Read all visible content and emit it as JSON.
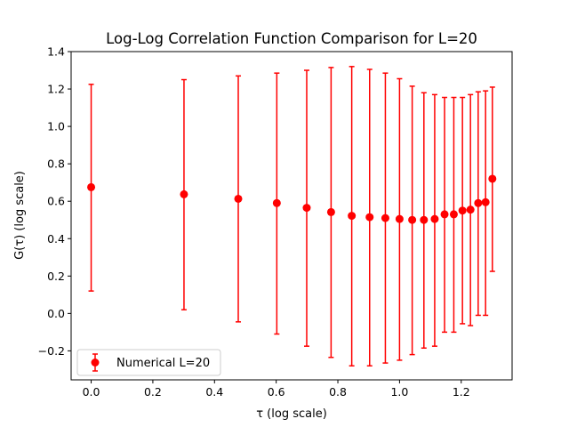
{
  "chart_data": {
    "type": "scatter",
    "title": "Log-Log Correlation Function Comparison for L=20",
    "xlabel": "τ (log scale)",
    "ylabel": "G(τ) (log scale)",
    "xlim": [
      -0.065,
      1.365
    ],
    "ylim": [
      -0.355,
      1.4
    ],
    "xticks": [
      0.0,
      0.2,
      0.4,
      0.6,
      0.8,
      1.0,
      1.2
    ],
    "xtick_labels": [
      "0.0",
      "0.2",
      "0.4",
      "0.6",
      "0.8",
      "1.0",
      "1.2"
    ],
    "yticks": [
      -0.2,
      0.0,
      0.2,
      0.4,
      0.6,
      0.8,
      1.0,
      1.2,
      1.4
    ],
    "ytick_labels": [
      "−0.2",
      "0.0",
      "0.2",
      "0.4",
      "0.6",
      "0.8",
      "1.0",
      "1.2",
      "1.4"
    ],
    "grid": false,
    "legend": {
      "position": "lower-left",
      "entries": [
        "Numerical L=20"
      ]
    },
    "series": [
      {
        "name": "Numerical L=20",
        "color": "#ff0000",
        "marker": "circle",
        "x": [
          0.0,
          0.301,
          0.477,
          0.602,
          0.699,
          0.778,
          0.845,
          0.903,
          0.954,
          1.0,
          1.041,
          1.079,
          1.114,
          1.146,
          1.176,
          1.204,
          1.23,
          1.255,
          1.279,
          1.301
        ],
        "y": [
          0.675,
          0.637,
          0.613,
          0.59,
          0.565,
          0.542,
          0.522,
          0.515,
          0.51,
          0.505,
          0.5,
          0.5,
          0.505,
          0.53,
          0.53,
          0.55,
          0.555,
          0.59,
          0.595,
          0.72
        ],
        "yerr_lower": [
          0.12,
          0.02,
          -0.045,
          -0.11,
          -0.175,
          -0.235,
          -0.28,
          -0.28,
          -0.265,
          -0.25,
          -0.22,
          -0.185,
          -0.175,
          -0.1,
          -0.1,
          -0.055,
          -0.065,
          -0.01,
          -0.01,
          0.225
        ],
        "yerr_upper": [
          1.225,
          1.25,
          1.27,
          1.285,
          1.3,
          1.315,
          1.32,
          1.305,
          1.285,
          1.255,
          1.215,
          1.18,
          1.17,
          1.155,
          1.155,
          1.155,
          1.17,
          1.185,
          1.19,
          1.21
        ]
      }
    ]
  }
}
